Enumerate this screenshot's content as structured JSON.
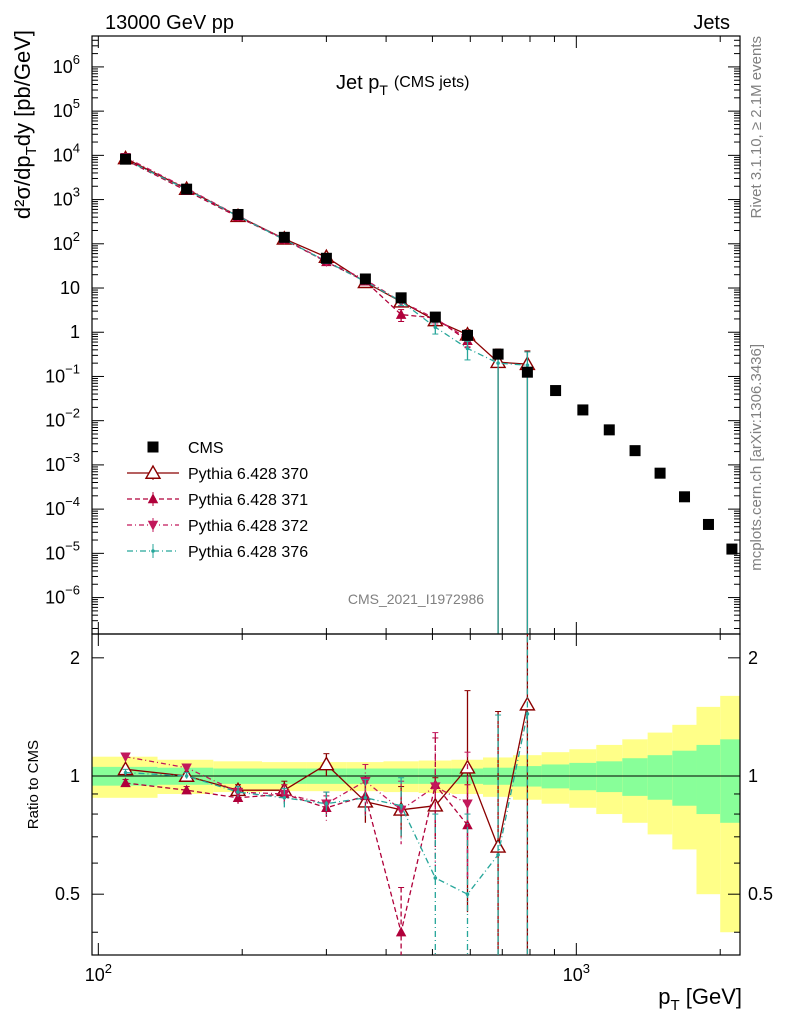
{
  "header": {
    "left": "13000 GeV pp",
    "right": "Jets"
  },
  "side": {
    "top": "Rivet 3.1.10, ≥ 2.1M events",
    "bottom": "mcplots.cern.ch [arXiv:1306.3436]"
  },
  "chart_data": {
    "type": "scatter",
    "title_main": "Jet p",
    "title_sub": "T",
    "title_paren": "(CMS jets)",
    "ylabel_main": "d²σ/dp",
    "ylabel_sub": "T",
    "ylabel_tail": "dy [pb/GeV]",
    "ratio_ylabel": "Ratio to CMS",
    "xlabel_main": "p",
    "xlabel_sub": "T",
    "xlabel_tail": " [GeV]",
    "watermark": "CMS_2021_I1972986",
    "xlim": [
      97,
      2200
    ],
    "ylim": [
      1.5e-07,
      5000000.0
    ],
    "ratio_ylim": [
      0.35,
      2.3
    ],
    "x_log": true,
    "y_log": true,
    "x_ticks": [
      {
        "v": 100,
        "base": "10",
        "exp": "2"
      },
      {
        "v": 1000,
        "base": "10",
        "exp": "3"
      }
    ],
    "y_ticks": [
      {
        "v": 1000000.0,
        "base": "10",
        "exp": "6"
      },
      {
        "v": 100000.0,
        "base": "10",
        "exp": "5"
      },
      {
        "v": 10000.0,
        "base": "10",
        "exp": "4"
      },
      {
        "v": 1000.0,
        "base": "10",
        "exp": "3"
      },
      {
        "v": 100.0,
        "base": "10",
        "exp": "2"
      },
      {
        "v": 10,
        "base": "10",
        "exp": ""
      },
      {
        "v": 1,
        "base": "1",
        "exp": ""
      },
      {
        "v": 0.1,
        "base": "10",
        "exp": "−1"
      },
      {
        "v": 0.01,
        "base": "10",
        "exp": "−2"
      },
      {
        "v": 0.001,
        "base": "10",
        "exp": "−3"
      },
      {
        "v": 0.0001,
        "base": "10",
        "exp": "−4"
      },
      {
        "v": 1e-05,
        "base": "10",
        "exp": "−5"
      },
      {
        "v": 1e-06,
        "base": "10",
        "exp": "−6"
      }
    ],
    "ratio_ticks": [
      {
        "v": 2,
        "label": "2"
      },
      {
        "v": 1,
        "label": "1"
      },
      {
        "v": 0.5,
        "label": "0.5"
      }
    ],
    "cms": {
      "name": "CMS",
      "x": [
        114,
        153,
        196,
        245,
        300,
        362,
        430,
        507,
        592,
        686,
        790,
        905,
        1032,
        1172,
        1327,
        1497,
        1684,
        1890,
        2116
      ],
      "y": [
        8200,
        1720,
        460,
        140,
        47,
        16,
        6.0,
        2.2,
        0.85,
        0.32,
        0.125,
        0.048,
        0.0175,
        0.0062,
        0.0021,
        0.00065,
        0.00019,
        4.5e-05,
        1.25e-05
      ]
    },
    "band_edges": [
      97,
      133,
      174,
      220,
      272,
      330,
      395,
      468,
      548,
      638,
      737,
      846,
      967,
      1101,
      1248,
      1410,
      1588,
      1784,
      2000,
      2200
    ],
    "band_inner": [
      0.055,
      0.05,
      0.045,
      0.045,
      0.045,
      0.045,
      0.045,
      0.045,
      0.045,
      0.05,
      0.06,
      0.07,
      0.08,
      0.09,
      0.11,
      0.13,
      0.16,
      0.2,
      0.24
    ],
    "band_outer": [
      0.12,
      0.1,
      0.09,
      0.085,
      0.085,
      0.085,
      0.09,
      0.095,
      0.1,
      0.115,
      0.13,
      0.15,
      0.17,
      0.2,
      0.24,
      0.29,
      0.35,
      0.5,
      0.6
    ],
    "series": [
      {
        "name": "Pythia 6.428 370",
        "color": "#8b0000",
        "dash": "",
        "marker": "triangle-up-open",
        "x": [
          114,
          153,
          196,
          245,
          300,
          362,
          430,
          507,
          592,
          686,
          790
        ],
        "y": [
          8500,
          1730,
          420,
          130,
          50,
          13.5,
          4.9,
          1.85,
          0.88,
          0.21,
          0.19
        ],
        "ratio": [
          1.04,
          1.0,
          0.92,
          0.92,
          1.07,
          0.86,
          0.82,
          0.84,
          1.05,
          0.66,
          1.52
        ],
        "ratio_err": [
          0.02,
          0.02,
          0.03,
          0.05,
          0.07,
          0.1,
          0.12,
          0.15,
          0.6,
          0.8,
          1.2
        ],
        "y_err_rel": [
          0.03,
          0.03,
          0.05,
          0.06,
          0.08,
          0.1,
          0.15,
          0.2,
          0.3,
          0.99,
          0.99
        ]
      },
      {
        "name": "Pythia 6.428 371",
        "color": "#b0003a",
        "dash": "5,3",
        "marker": "triangle-up-filled",
        "x": [
          114,
          153,
          196,
          245,
          300,
          362,
          430,
          507,
          592
        ],
        "y": [
          7900,
          1580,
          405,
          125,
          39,
          14.2,
          2.5,
          2.1,
          0.64
        ],
        "ratio": [
          0.96,
          0.92,
          0.88,
          0.9,
          0.83,
          0.89,
          0.4,
          0.95,
          0.75
        ],
        "ratio_err": [
          0.02,
          0.02,
          0.03,
          0.05,
          0.06,
          0.1,
          0.12,
          0.3,
          0.2
        ],
        "y_err_rel": [
          0.03,
          0.03,
          0.05,
          0.06,
          0.1,
          0.12,
          0.3,
          0.2,
          0.3
        ]
      },
      {
        "name": "Pythia 6.428 372",
        "color": "#c2185b",
        "dash": "5,3,1,3",
        "marker": "triangle-down-filled",
        "x": [
          114,
          153,
          196,
          245,
          300,
          362,
          430,
          507,
          592
        ],
        "y": [
          9100,
          1800,
          430,
          128,
          40,
          15.4,
          4.9,
          2.05,
          0.72
        ],
        "ratio": [
          1.12,
          1.05,
          0.91,
          0.9,
          0.85,
          0.97,
          0.82,
          0.94,
          0.85
        ],
        "ratio_err": [
          0.02,
          0.02,
          0.03,
          0.05,
          0.06,
          0.1,
          0.15,
          0.35,
          0.3
        ],
        "y_err_rel": [
          0.03,
          0.03,
          0.05,
          0.06,
          0.1,
          0.12,
          0.2,
          0.25,
          0.35
        ]
      },
      {
        "name": "Pythia 6.428 376",
        "color": "#26a69a",
        "dash": "6,3,1,3",
        "marker": "dot",
        "x": [
          114,
          153,
          196,
          245,
          300,
          362,
          430,
          507,
          592,
          686,
          790
        ],
        "y": [
          8000,
          1700,
          420,
          125,
          40,
          14.0,
          5.0,
          1.3,
          0.43,
          0.2,
          0.18
        ],
        "ratio": [
          1.02,
          1.0,
          0.91,
          0.88,
          0.85,
          0.88,
          0.84,
          0.55,
          0.5,
          0.63,
          1.44
        ],
        "ratio_err": [
          0.02,
          0.02,
          0.03,
          0.05,
          0.06,
          0.1,
          0.15,
          0.25,
          0.3,
          0.8,
          1.2
        ],
        "y_err_rel": [
          0.03,
          0.03,
          0.05,
          0.06,
          0.1,
          0.12,
          0.2,
          0.3,
          0.45,
          0.99,
          0.99
        ]
      }
    ],
    "legend_position": "bottom-left"
  }
}
